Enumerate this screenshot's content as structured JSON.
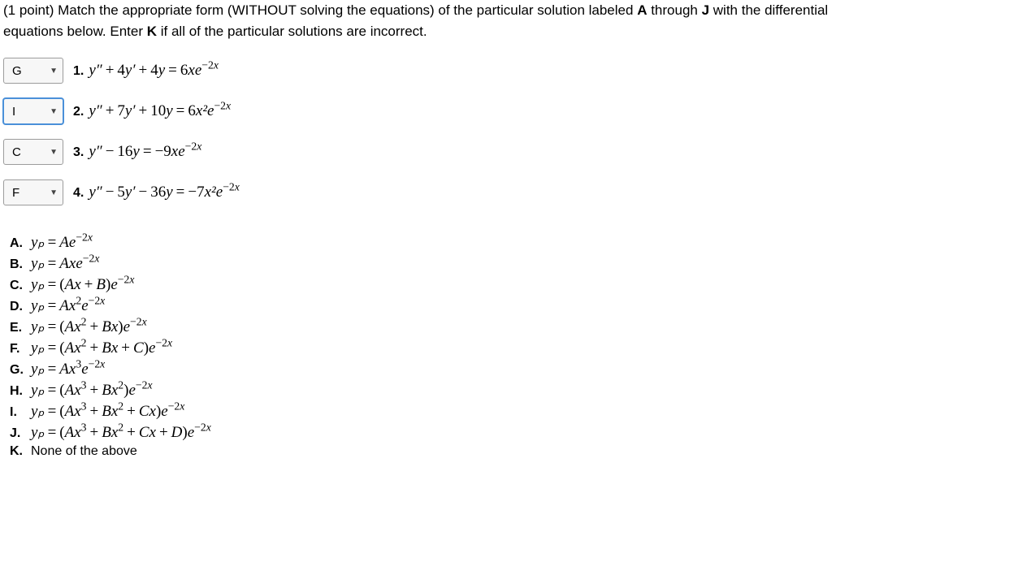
{
  "intro": {
    "line1_prefix": "(1 point) Match the appropriate form (WITHOUT solving the equations) of the particular solution labeled ",
    "labelA": "A",
    "through": " through ",
    "labelJ": "J",
    "line1_suffix": " with the differential",
    "line2_prefix": "equations below. Enter ",
    "labelK": "K",
    "line2_suffix": " if all of the particular solutions are incorrect."
  },
  "equations": {
    "1": {
      "selected": "G",
      "active": false,
      "num_label": "1.",
      "lhs_coef_yp": "4",
      "lhs_coef_y": "4",
      "lhs_op1": "+",
      "lhs_op2": "+",
      "rhs_coef": "6",
      "rhs_poly": "x",
      "exp": "−2"
    },
    "2": {
      "selected": "I",
      "active": true,
      "num_label": "2.",
      "lhs_coef_yp": "7",
      "lhs_coef_y": "10",
      "lhs_op1": "+",
      "lhs_op2": "+",
      "rhs_coef": "6",
      "rhs_poly": "x²",
      "exp": "−2"
    },
    "3": {
      "selected": "C",
      "active": false,
      "num_label": "3.",
      "lhs_coef_yp": "",
      "lhs_coef_y": "16",
      "lhs_op1": "",
      "lhs_op2": "−",
      "rhs_coef": "−9",
      "rhs_poly": "x",
      "exp": "−2"
    },
    "4": {
      "selected": "F",
      "active": false,
      "num_label": "4.",
      "lhs_coef_yp": "5",
      "lhs_coef_y": "36",
      "lhs_op1": "−",
      "lhs_op2": "−",
      "rhs_coef": "−7",
      "rhs_poly": "x²",
      "exp": "−2"
    }
  },
  "options": {
    "A": {
      "letter": "A.",
      "text": "Ae",
      "poly_before": "",
      "exp": "−2"
    },
    "B": {
      "letter": "B.",
      "text": "Axe",
      "poly_before": "",
      "exp": "−2"
    },
    "C": {
      "letter": "C.",
      "text": "(Ax + B)e",
      "poly_before": "",
      "exp": "−2"
    },
    "D": {
      "letter": "D.",
      "text": "Ax²e",
      "poly_before": "",
      "exp": "−2"
    },
    "E": {
      "letter": "E.",
      "text": "(Ax² + Bx)e",
      "poly_before": "",
      "exp": "−2"
    },
    "F": {
      "letter": "F.",
      "text": "(Ax² + Bx + C)e",
      "poly_before": "",
      "exp": "−2"
    },
    "G": {
      "letter": "G.",
      "text": "Ax³e",
      "poly_before": "",
      "exp": "−2"
    },
    "H": {
      "letter": "H.",
      "text": "(Ax³ + Bx²)e",
      "poly_before": "",
      "exp": "−2"
    },
    "I": {
      "letter": "I.",
      "text": "(Ax³ + Bx² + Cx)e",
      "poly_before": "",
      "exp": "−2"
    },
    "J": {
      "letter": "J.",
      "text": "(Ax³ + Bx² + Cx + D)e",
      "poly_before": "",
      "exp": "−2"
    },
    "K": {
      "letter": "K.",
      "text_plain": "None of the above"
    }
  },
  "symbols": {
    "ypp": "y″",
    "yp": "y′",
    "y": "y",
    "eq": "=",
    "e": "e",
    "x": "x",
    "yp_sub": "yₚ"
  }
}
